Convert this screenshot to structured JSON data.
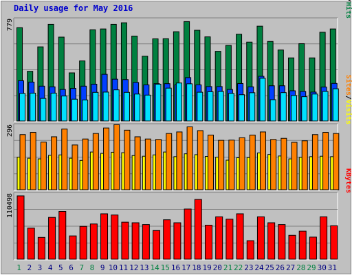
{
  "title": "Daily usage for May 2016",
  "colors": {
    "background": "#c0c0c0",
    "panel": "#c0c0c0",
    "grid": "#808080",
    "hits": "#008040",
    "files": "#0040ff",
    "pages": "#00e0ff",
    "visits": "#ffff00",
    "sites": "#ff8000",
    "kbytes": "#ff0000",
    "title": "#0000cc",
    "weekend_label": "#008040",
    "weekday_label": "#000080"
  },
  "chart_data": [
    {
      "type": "bar",
      "name": "hits-files-pages",
      "y_max_label": "779",
      "ymax": 779,
      "legend": [
        "Pages",
        "/",
        "Files",
        "/",
        "Hits"
      ],
      "categories": [
        "1",
        "2",
        "3",
        "4",
        "5",
        "6",
        "7",
        "8",
        "9",
        "10",
        "11",
        "12",
        "13",
        "14",
        "15",
        "16",
        "17",
        "18",
        "19",
        "20",
        "21",
        "22",
        "23",
        "24",
        "25",
        "26",
        "27",
        "28",
        "29",
        "30",
        "31"
      ],
      "weekend": [
        true,
        false,
        false,
        false,
        false,
        false,
        true,
        true,
        false,
        false,
        false,
        false,
        false,
        true,
        true,
        false,
        false,
        false,
        false,
        false,
        true,
        true,
        false,
        false,
        false,
        false,
        false,
        true,
        true,
        false,
        false
      ],
      "series": [
        {
          "name": "Hits",
          "values": [
            710,
            378,
            564,
            735,
            638,
            366,
            457,
            694,
            700,
            735,
            747,
            646,
            493,
            625,
            626,
            679,
            756,
            690,
            640,
            530,
            575,
            660,
            600,
            721,
            605,
            540,
            480,
            588,
            480,
            675,
            700
          ]
        },
        {
          "name": "Files",
          "values": [
            306,
            296,
            265,
            260,
            240,
            248,
            265,
            280,
            355,
            318,
            315,
            293,
            275,
            284,
            284,
            276,
            330,
            275,
            262,
            262,
            240,
            285,
            260,
            340,
            268,
            268,
            230,
            225,
            220,
            258,
            286
          ]
        },
        {
          "name": "Pages",
          "values": [
            210,
            212,
            172,
            212,
            190,
            166,
            160,
            218,
            220,
            237,
            218,
            205,
            197,
            280,
            250,
            289,
            283,
            219,
            223,
            225,
            210,
            200,
            215,
            325,
            162,
            216,
            194,
            185,
            205,
            225,
            245
          ]
        }
      ]
    },
    {
      "type": "bar",
      "name": "sites-visits",
      "y_max_label": "296",
      "ymax": 296,
      "legend": [
        "Sites",
        "/",
        "Visits"
      ],
      "categories": [
        "1",
        "2",
        "3",
        "4",
        "5",
        "6",
        "7",
        "8",
        "9",
        "10",
        "11",
        "12",
        "13",
        "14",
        "15",
        "16",
        "17",
        "18",
        "19",
        "20",
        "21",
        "22",
        "23",
        "24",
        "25",
        "26",
        "27",
        "28",
        "29",
        "30",
        "31"
      ],
      "series": [
        {
          "name": "Visits",
          "values": [
            148,
            143,
            140,
            156,
            158,
            143,
            133,
            171,
            165,
            170,
            168,
            155,
            152,
            158,
            171,
            150,
            163,
            159,
            151,
            148,
            134,
            145,
            146,
            167,
            160,
            153,
            140,
            147,
            150,
            152,
            150
          ]
        },
        {
          "name": "Sites",
          "values": [
            250,
            260,
            216,
            240,
            275,
            203,
            230,
            255,
            280,
            295,
            270,
            240,
            230,
            228,
            255,
            262,
            285,
            268,
            248,
            224,
            225,
            236,
            248,
            262,
            228,
            233,
            215,
            222,
            250,
            260,
            255
          ]
        }
      ]
    },
    {
      "type": "bar",
      "name": "kbytes",
      "y_max_label": "110498",
      "ymax": 110498,
      "legend": [
        "KBytes"
      ],
      "categories": [
        "1",
        "2",
        "3",
        "4",
        "5",
        "6",
        "7",
        "8",
        "9",
        "10",
        "11",
        "12",
        "13",
        "14",
        "15",
        "16",
        "17",
        "18",
        "19",
        "20",
        "21",
        "22",
        "23",
        "24",
        "25",
        "26",
        "27",
        "28",
        "29",
        "30",
        "31"
      ],
      "series": [
        {
          "name": "KBytes",
          "values": [
            106000,
            52000,
            36500,
            70000,
            80000,
            39000,
            55000,
            59000,
            76000,
            74000,
            62000,
            61000,
            58000,
            48000,
            66000,
            61000,
            84000,
            100000,
            57000,
            71000,
            67000,
            76000,
            31000,
            71000,
            61000,
            58000,
            40000,
            47000,
            37000,
            71000,
            56000
          ]
        }
      ]
    }
  ]
}
